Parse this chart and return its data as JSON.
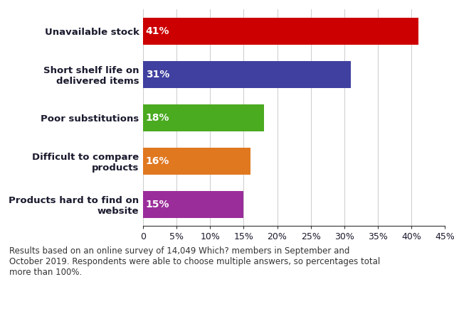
{
  "categories": [
    "Products hard to find on\nwebsite",
    "Difficult to compare\nproducts",
    "Poor substitutions",
    "Short shelf life on\ndelivered items",
    "Unavailable stock"
  ],
  "values": [
    15,
    16,
    18,
    31,
    41
  ],
  "colors": [
    "#9b2d9b",
    "#e07820",
    "#4aaa20",
    "#4040a0",
    "#cc0000"
  ],
  "labels": [
    "15%",
    "16%",
    "18%",
    "31%",
    "41%"
  ],
  "xlim": [
    0,
    45
  ],
  "xticks": [
    0,
    5,
    10,
    15,
    20,
    25,
    30,
    35,
    40,
    45
  ],
  "xtick_labels": [
    "0",
    "5%",
    "10%",
    "15%",
    "20%",
    "25%",
    "30%",
    "35%",
    "40%",
    "45%"
  ],
  "footnote": "Results based on an online survey of 14,049 Which? members in September and\nOctober 2019. Respondents were able to choose multiple answers, so percentages total\nmore than 100%.",
  "bar_height": 0.62,
  "label_fontsize": 10,
  "tick_fontsize": 9,
  "category_fontsize": 9.5,
  "footnote_fontsize": 8.5,
  "label_color": "#1a1a2e",
  "grid_color": "#cccccc"
}
